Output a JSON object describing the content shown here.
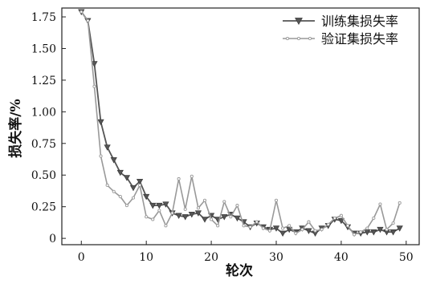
{
  "chart_data": {
    "type": "line",
    "xlabel": "轮次",
    "ylabel": "损失率/%",
    "xlim": [
      -3,
      52
    ],
    "ylim": [
      -0.05,
      1.82
    ],
    "xticks": [
      0,
      10,
      20,
      30,
      40,
      50
    ],
    "yticks": [
      0,
      0.25,
      0.5,
      0.75,
      1.0,
      1.25,
      1.5,
      1.75
    ],
    "xtick_labels": [
      "0",
      "10",
      "20",
      "30",
      "40",
      "50"
    ],
    "ytick_labels": [
      "0",
      "0.25",
      "0.50",
      "0.75",
      "1.00",
      "1.25",
      "1.50",
      "1.75"
    ],
    "grid": false,
    "legend_position": "top-right",
    "series": [
      {
        "name": "训练集损失率",
        "color": "#555555",
        "marker": "triangle-down",
        "x": [
          0,
          1,
          2,
          3,
          4,
          5,
          6,
          7,
          8,
          9,
          10,
          11,
          12,
          13,
          14,
          15,
          16,
          17,
          18,
          19,
          20,
          21,
          22,
          23,
          24,
          25,
          26,
          27,
          28,
          29,
          30,
          31,
          32,
          33,
          34,
          35,
          36,
          37,
          38,
          39,
          40,
          41,
          42,
          43,
          44,
          45,
          46,
          47,
          48,
          49
        ],
        "y": [
          1.79,
          1.72,
          1.38,
          0.92,
          0.72,
          0.62,
          0.52,
          0.48,
          0.4,
          0.45,
          0.33,
          0.26,
          0.26,
          0.27,
          0.2,
          0.18,
          0.17,
          0.19,
          0.2,
          0.15,
          0.18,
          0.15,
          0.17,
          0.19,
          0.16,
          0.13,
          0.09,
          0.12,
          0.09,
          0.07,
          0.08,
          0.04,
          0.07,
          0.05,
          0.08,
          0.06,
          0.04,
          0.08,
          0.1,
          0.15,
          0.14,
          0.09,
          0.04,
          0.04,
          0.05,
          0.05,
          0.07,
          0.05,
          0.05,
          0.08
        ]
      },
      {
        "name": "验证集损失率",
        "color": "#999999",
        "marker": "circle",
        "x": [
          0,
          1,
          2,
          3,
          4,
          5,
          6,
          7,
          8,
          9,
          10,
          11,
          12,
          13,
          14,
          15,
          16,
          17,
          18,
          19,
          20,
          21,
          22,
          23,
          24,
          25,
          26,
          27,
          28,
          29,
          30,
          31,
          32,
          33,
          34,
          35,
          36,
          37,
          38,
          39,
          40,
          41,
          42,
          43,
          44,
          45,
          46,
          47,
          48,
          49
        ],
        "y": [
          1.79,
          1.72,
          1.2,
          0.65,
          0.42,
          0.37,
          0.33,
          0.26,
          0.32,
          0.42,
          0.17,
          0.15,
          0.22,
          0.1,
          0.2,
          0.47,
          0.23,
          0.49,
          0.24,
          0.3,
          0.15,
          0.1,
          0.29,
          0.17,
          0.26,
          0.1,
          0.09,
          0.13,
          0.08,
          0.06,
          0.3,
          0.08,
          0.1,
          0.04,
          0.07,
          0.13,
          0.06,
          0.07,
          0.11,
          0.16,
          0.18,
          0.1,
          0.03,
          0.05,
          0.08,
          0.16,
          0.27,
          0.07,
          0.12,
          0.28
        ]
      }
    ]
  }
}
